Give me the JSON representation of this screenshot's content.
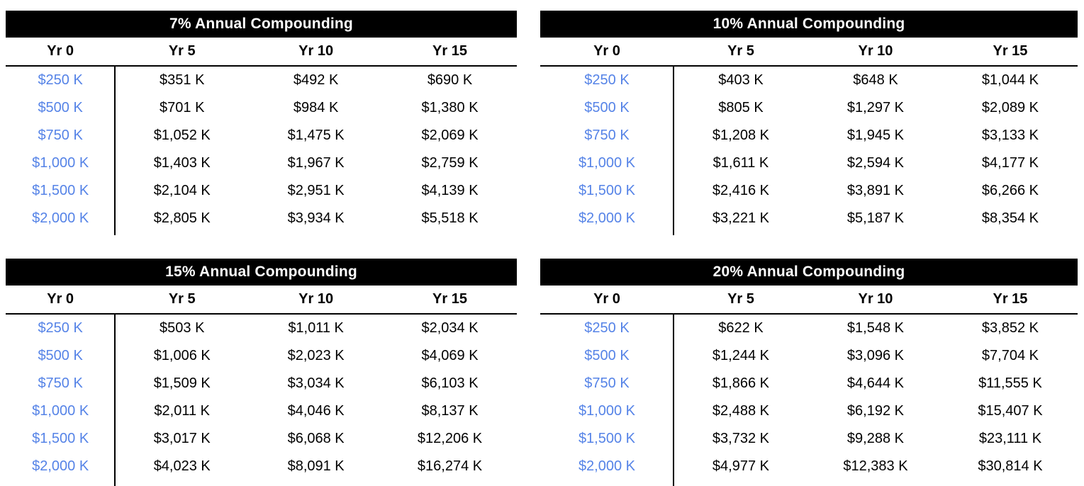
{
  "colors": {
    "title_bg": "#000000",
    "title_text": "#ffffff",
    "header_text": "#000000",
    "value_text": "#000000",
    "principal_text": "#5583e7",
    "rule": "#000000",
    "page_bg": "#ffffff"
  },
  "chart_data": [
    {
      "type": "table",
      "title": "7% Annual Compounding",
      "columns": [
        "Yr 0",
        "Yr 5",
        "Yr 10",
        "Yr 15"
      ],
      "rows": [
        [
          "$250 K",
          "$351 K",
          "$492 K",
          "$690 K"
        ],
        [
          "$500 K",
          "$701 K",
          "$984 K",
          "$1,380 K"
        ],
        [
          "$750 K",
          "$1,052 K",
          "$1,475 K",
          "$2,069 K"
        ],
        [
          "$1,000 K",
          "$1,403 K",
          "$1,967 K",
          "$2,759 K"
        ],
        [
          "$1,500 K",
          "$2,104 K",
          "$2,951 K",
          "$4,139 K"
        ],
        [
          "$2,000 K",
          "$2,805 K",
          "$3,934 K",
          "$5,518 K"
        ]
      ]
    },
    {
      "type": "table",
      "title": "10% Annual Compounding",
      "columns": [
        "Yr 0",
        "Yr 5",
        "Yr 10",
        "Yr 15"
      ],
      "rows": [
        [
          "$250 K",
          "$403 K",
          "$648 K",
          "$1,044 K"
        ],
        [
          "$500 K",
          "$805 K",
          "$1,297 K",
          "$2,089 K"
        ],
        [
          "$750 K",
          "$1,208 K",
          "$1,945 K",
          "$3,133 K"
        ],
        [
          "$1,000 K",
          "$1,611 K",
          "$2,594 K",
          "$4,177 K"
        ],
        [
          "$1,500 K",
          "$2,416 K",
          "$3,891 K",
          "$6,266 K"
        ],
        [
          "$2,000 K",
          "$3,221 K",
          "$5,187 K",
          "$8,354 K"
        ]
      ]
    },
    {
      "type": "table",
      "title": "15% Annual Compounding",
      "columns": [
        "Yr 0",
        "Yr 5",
        "Yr 10",
        "Yr 15"
      ],
      "rows": [
        [
          "$250 K",
          "$503 K",
          "$1,011 K",
          "$2,034 K"
        ],
        [
          "$500 K",
          "$1,006 K",
          "$2,023 K",
          "$4,069 K"
        ],
        [
          "$750 K",
          "$1,509 K",
          "$3,034 K",
          "$6,103 K"
        ],
        [
          "$1,000 K",
          "$2,011 K",
          "$4,046 K",
          "$8,137 K"
        ],
        [
          "$1,500 K",
          "$3,017 K",
          "$6,068 K",
          "$12,206 K"
        ],
        [
          "$2,000 K",
          "$4,023 K",
          "$8,091 K",
          "$16,274 K"
        ]
      ]
    },
    {
      "type": "table",
      "title": "20% Annual Compounding",
      "columns": [
        "Yr 0",
        "Yr 5",
        "Yr 10",
        "Yr 15"
      ],
      "rows": [
        [
          "$250 K",
          "$622 K",
          "$1,548 K",
          "$3,852 K"
        ],
        [
          "$500 K",
          "$1,244 K",
          "$3,096 K",
          "$7,704 K"
        ],
        [
          "$750 K",
          "$1,866 K",
          "$4,644 K",
          "$11,555 K"
        ],
        [
          "$1,000 K",
          "$2,488 K",
          "$6,192 K",
          "$15,407 K"
        ],
        [
          "$1,500 K",
          "$3,732 K",
          "$9,288 K",
          "$23,111 K"
        ],
        [
          "$2,000 K",
          "$4,977 K",
          "$12,383 K",
          "$30,814 K"
        ]
      ]
    }
  ]
}
